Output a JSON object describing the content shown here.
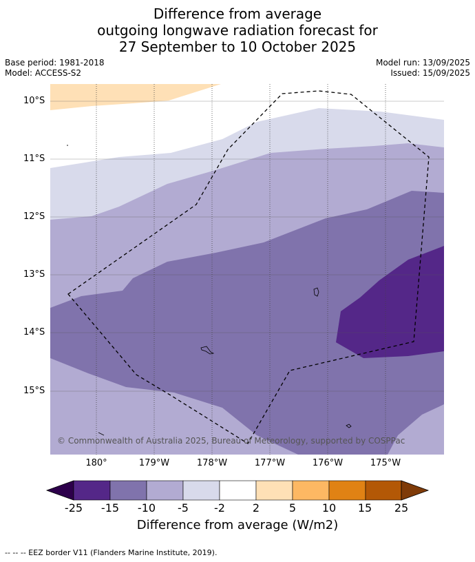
{
  "title": {
    "line1": "Difference from average",
    "line2": "outgoing longwave radiation forecast for",
    "line3": "27 September to 10 October 2025"
  },
  "meta": {
    "base_period": "Base period: 1981-2018",
    "model": "Model: ACCESS-S2",
    "model_run": "Model run: 13/09/2025",
    "issued": "Issued: 15/09/2025"
  },
  "axes": {
    "lat_labels": [
      "10°S",
      "11°S",
      "12°S",
      "13°S",
      "14°S",
      "15°S"
    ],
    "lon_labels": [
      "180°",
      "179°W",
      "178°W",
      "177°W",
      "176°W",
      "175°W"
    ]
  },
  "copyright": "© Commonwealth of Australia 2025, Bureau of Meteorology, supported by COSPPac",
  "colorbar": {
    "title": "Difference from average (W/m2)",
    "ticks": [
      "-25",
      "-15",
      "-10",
      "-5",
      "-2",
      "2",
      "5",
      "10",
      "15",
      "25"
    ],
    "colors": {
      "below_min": "#2d004b",
      "-25_-15": "#542788",
      "-15_-10": "#8073ac",
      "-10_-5": "#b2abd2",
      "-5_-2": "#d8daeb",
      "-2_2": "#ffffff",
      "2_5": "#fee0b6",
      "5_10": "#fdb863",
      "10_15": "#e08214",
      "15_25": "#b35806",
      "above_max": "#7f3b08"
    }
  },
  "footnote": "-- -- -- EEZ border V11 (Flanders Marine Institute, 2019)."
}
